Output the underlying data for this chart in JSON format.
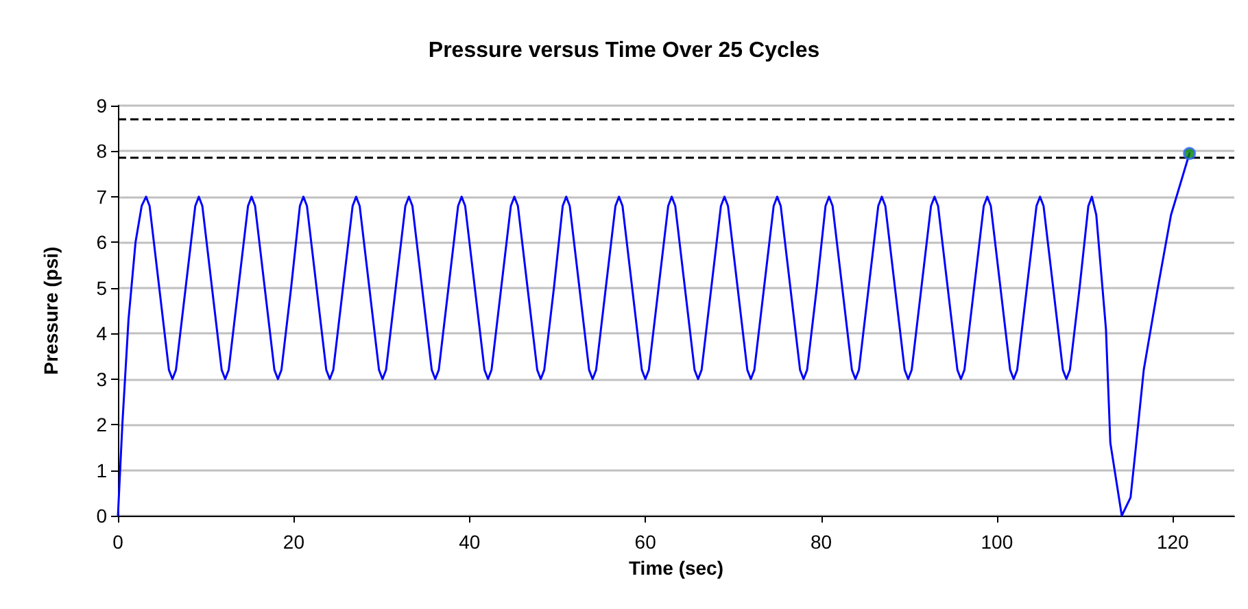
{
  "chart_data": {
    "type": "line",
    "title": "Pressure versus Time Over 25 Cycles",
    "xlabel": "Time (sec)",
    "ylabel": "Pressure (psi)",
    "xlim": [
      0,
      127
    ],
    "xticks": [
      0,
      20,
      40,
      60,
      80,
      100,
      120
    ],
    "ylim": [
      0,
      9
    ],
    "yticks": [
      0,
      1,
      2,
      3,
      4,
      5,
      6,
      7,
      8,
      9
    ],
    "grid": "y",
    "series": [
      {
        "color": "#0000ff",
        "marker": "none",
        "line_style": "solid",
        "x": [
          0,
          0.5,
          1.2,
          2.0,
          2.7,
          3.2,
          3.6,
          4.7,
          5.8,
          6.2,
          6.6,
          7.7,
          8.8,
          9.2,
          9.6,
          10.7,
          11.8,
          12.2,
          12.6,
          13.7,
          14.8,
          15.2,
          15.6,
          16.7,
          17.8,
          18.2,
          18.6,
          19.7,
          20.7,
          21.1,
          21.5,
          22.6,
          23.7,
          24.1,
          24.5,
          25.6,
          26.7,
          27.1,
          27.5,
          28.6,
          29.7,
          30.1,
          30.5,
          31.6,
          32.7,
          33.1,
          33.5,
          34.6,
          35.7,
          36.1,
          36.5,
          37.6,
          38.7,
          39.1,
          39.5,
          40.6,
          41.7,
          42.1,
          42.5,
          43.6,
          44.7,
          45.1,
          45.5,
          46.6,
          47.7,
          48.1,
          48.5,
          49.6,
          50.6,
          51.0,
          51.4,
          52.5,
          53.6,
          54.0,
          54.4,
          55.5,
          56.6,
          57.0,
          57.4,
          58.5,
          59.6,
          60.0,
          60.4,
          61.5,
          62.6,
          63.0,
          63.4,
          64.5,
          65.6,
          66.0,
          66.4,
          67.5,
          68.6,
          69.0,
          69.4,
          70.5,
          71.6,
          72.0,
          72.4,
          73.5,
          74.6,
          75.0,
          75.4,
          76.5,
          77.6,
          78.0,
          78.4,
          79.5,
          80.5,
          80.9,
          81.3,
          82.4,
          83.5,
          83.9,
          84.3,
          85.4,
          86.5,
          86.9,
          87.3,
          88.4,
          89.5,
          89.9,
          90.3,
          91.4,
          92.5,
          92.9,
          93.3,
          94.4,
          95.5,
          95.9,
          96.3,
          97.4,
          98.5,
          98.9,
          99.3,
          100.4,
          101.5,
          101.9,
          102.3,
          103.4,
          104.5,
          104.9,
          105.3,
          106.4,
          107.5,
          107.9,
          108.3,
          109.4,
          110.4,
          110.8,
          111.3,
          112.4,
          112.9,
          114.2,
          115.2,
          115.8,
          116.7,
          118.3,
          119.8,
          121.9
        ],
        "values": [
          0,
          2,
          4.3,
          6,
          6.8,
          7,
          6.8,
          5,
          3.2,
          3,
          3.2,
          5,
          6.8,
          7,
          6.8,
          5,
          3.2,
          3,
          3.2,
          5,
          6.8,
          7,
          6.8,
          5,
          3.2,
          3,
          3.2,
          5,
          6.8,
          7,
          6.8,
          5,
          3.2,
          3,
          3.2,
          5,
          6.8,
          7,
          6.8,
          5,
          3.2,
          3,
          3.2,
          5,
          6.8,
          7,
          6.8,
          5,
          3.2,
          3,
          3.2,
          5,
          6.8,
          7,
          6.8,
          5,
          3.2,
          3,
          3.2,
          5,
          6.8,
          7,
          6.8,
          5,
          3.2,
          3,
          3.2,
          5,
          6.8,
          7,
          6.8,
          5,
          3.2,
          3,
          3.2,
          5,
          6.8,
          7,
          6.8,
          5,
          3.2,
          3,
          3.2,
          5,
          6.8,
          7,
          6.8,
          5,
          3.2,
          3,
          3.2,
          5,
          6.8,
          7,
          6.8,
          5,
          3.2,
          3,
          3.2,
          5,
          6.8,
          7,
          6.8,
          5,
          3.2,
          3,
          3.2,
          5,
          6.8,
          7,
          6.8,
          5,
          3.2,
          3,
          3.2,
          5,
          6.8,
          7,
          6.8,
          5,
          3.2,
          3,
          3.2,
          5,
          6.8,
          7,
          6.8,
          5,
          3.2,
          3,
          3.2,
          5,
          6.8,
          7,
          6.8,
          5,
          3.2,
          3,
          3.2,
          5,
          6.8,
          7,
          6.8,
          5,
          3.2,
          3,
          3.2,
          5,
          6.8,
          7,
          6.6,
          4.1,
          1.6,
          0,
          0.4,
          1.5,
          3.2,
          5,
          6.6,
          7.95
        ]
      },
      {
        "type": "scatter",
        "color": "#008000",
        "marker": "circle",
        "x": [
          121.9
        ],
        "values": [
          7.95
        ]
      }
    ],
    "ref_lines": [
      {
        "axis": "y",
        "value": 8.7,
        "color": "#000000",
        "line_style": "dashed"
      },
      {
        "axis": "y",
        "value": 7.85,
        "color": "#000000",
        "line_style": "dashed"
      }
    ]
  }
}
